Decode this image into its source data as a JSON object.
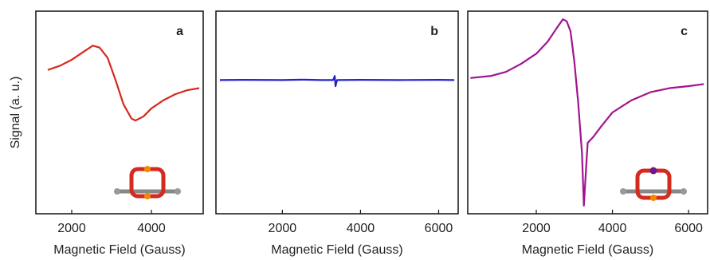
{
  "chart_data": [
    {
      "type": "line",
      "ylabel": "Signal (a. u.)",
      "annotation": "a",
      "xlabel": "Magnetic Field (Gauss)",
      "xlim": [
        1100,
        5300
      ],
      "xticks": [
        2000,
        4000
      ],
      "ylim": [
        0,
        100
      ],
      "series": [
        {
          "color": "#d42a1f",
          "x": [
            1400,
            1700,
            2000,
            2300,
            2530,
            2700,
            2900,
            3100,
            3300,
            3500,
            3600,
            3800,
            4000,
            4300,
            4600,
            4900,
            5200
          ],
          "values": [
            71,
            73,
            76,
            80,
            83,
            82,
            77,
            66,
            54,
            47,
            46,
            48,
            52,
            56,
            59,
            61,
            62
          ]
        }
      ]
    },
    {
      "type": "line",
      "annotation": "b",
      "xlabel": "Magnetic Field (Gauss)",
      "xlim": [
        300,
        6500
      ],
      "xticks": [
        2000,
        4000,
        6000
      ],
      "ylim": [
        0,
        100
      ],
      "series": [
        {
          "color": "#2222cc",
          "x": [
            400,
            1000,
            2000,
            2500,
            3000,
            3300,
            3340,
            3360,
            3400,
            4000,
            5000,
            6000,
            6400
          ],
          "values": [
            66,
            66.1,
            66,
            66.2,
            66,
            66,
            68,
            63,
            66,
            66.1,
            66,
            66.1,
            66
          ]
        }
      ]
    },
    {
      "type": "line",
      "annotation": "c",
      "xlabel": "Magnetic Field (Gauss)",
      "xlim": [
        200,
        6500
      ],
      "xticks": [
        2000,
        4000,
        6000
      ],
      "ylim": [
        0,
        100
      ],
      "series": [
        {
          "color": "#a0148f",
          "x": [
            270,
            800,
            1200,
            1600,
            2000,
            2300,
            2550,
            2700,
            2800,
            2900,
            3000,
            3100,
            3200,
            3250,
            3300,
            3350,
            3500,
            3700,
            4000,
            4500,
            5000,
            5500,
            6000,
            6400
          ],
          "values": [
            67,
            68,
            70,
            74,
            79,
            85,
            92,
            96,
            95,
            90,
            75,
            55,
            30,
            4,
            20,
            35,
            38,
            43,
            50,
            56,
            60,
            62,
            63,
            64
          ]
        }
      ]
    }
  ]
}
